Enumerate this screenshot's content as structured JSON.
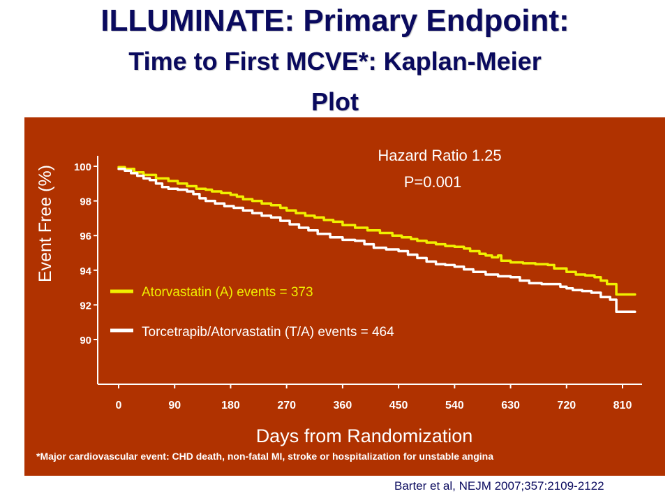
{
  "title": {
    "line1": "ILLUMINATE: Primary Endpoint:",
    "line2": "Time to First MCVE*: Kaplan-Meier",
    "line3": "Plot"
  },
  "footnote": "*Major cardiovascular event: CHD death, non-fatal MI, stroke or hospitalization for unstable angina",
  "citation": "Barter et al, NEJM 2007;357:2109-2122",
  "colors": {
    "panel_bg": "#b03200",
    "title": "#0a0a5e",
    "series_a": "#f0f000",
    "series_ta": "#ffffff"
  },
  "chart_data": {
    "type": "line",
    "subtype": "step (Kaplan-Meier)",
    "title": "",
    "xlabel": "Days from Randomization",
    "ylabel": "Event Free (%)",
    "x_ticks": [
      "0",
      "90",
      "180",
      "270",
      "360",
      "450",
      "540",
      "630",
      "720",
      "810"
    ],
    "y_ticks": [
      "100",
      "98",
      "96",
      "94",
      "92",
      "90"
    ],
    "xlim": [
      -30,
      845
    ],
    "ylim": [
      87.9,
      100.6
    ],
    "grid": false,
    "legend_position": "left-middle",
    "annotations": {
      "hazard_ratio": "Hazard Ratio 1.25",
      "p_value": "P=0.001"
    },
    "series": [
      {
        "name": "Atorvastatin (A) events = 373",
        "color": "#f0f000",
        "points": [
          [
            0,
            99.95
          ],
          [
            10,
            99.85
          ],
          [
            25,
            99.65
          ],
          [
            40,
            99.5
          ],
          [
            60,
            99.3
          ],
          [
            80,
            99.15
          ],
          [
            95,
            99.0
          ],
          [
            110,
            98.85
          ],
          [
            125,
            98.7
          ],
          [
            140,
            98.65
          ],
          [
            150,
            98.55
          ],
          [
            165,
            98.45
          ],
          [
            180,
            98.35
          ],
          [
            190,
            98.25
          ],
          [
            200,
            98.1
          ],
          [
            215,
            98.0
          ],
          [
            230,
            97.85
          ],
          [
            245,
            97.75
          ],
          [
            260,
            97.6
          ],
          [
            270,
            97.45
          ],
          [
            285,
            97.3
          ],
          [
            300,
            97.15
          ],
          [
            315,
            97.05
          ],
          [
            330,
            96.9
          ],
          [
            345,
            96.8
          ],
          [
            360,
            96.6
          ],
          [
            380,
            96.45
          ],
          [
            400,
            96.3
          ],
          [
            420,
            96.15
          ],
          [
            440,
            96.0
          ],
          [
            455,
            95.9
          ],
          [
            470,
            95.8
          ],
          [
            480,
            95.7
          ],
          [
            495,
            95.6
          ],
          [
            510,
            95.5
          ],
          [
            525,
            95.4
          ],
          [
            540,
            95.35
          ],
          [
            555,
            95.25
          ],
          [
            565,
            95.1
          ],
          [
            580,
            94.95
          ],
          [
            590,
            94.85
          ],
          [
            600,
            94.75
          ],
          [
            610,
            94.85
          ],
          [
            615,
            94.55
          ],
          [
            630,
            94.45
          ],
          [
            650,
            94.4
          ],
          [
            670,
            94.35
          ],
          [
            690,
            94.3
          ],
          [
            700,
            94.1
          ],
          [
            720,
            93.9
          ],
          [
            735,
            93.75
          ],
          [
            750,
            93.7
          ],
          [
            765,
            93.6
          ],
          [
            775,
            93.4
          ],
          [
            785,
            93.2
          ],
          [
            800,
            92.6
          ],
          [
            830,
            92.6
          ]
        ]
      },
      {
        "name": "Torcetrapib/Atorvastatin (T/A) events = 464",
        "color": "#ffffff",
        "points": [
          [
            0,
            99.85
          ],
          [
            10,
            99.75
          ],
          [
            20,
            99.6
          ],
          [
            30,
            99.45
          ],
          [
            40,
            99.3
          ],
          [
            50,
            99.2
          ],
          [
            60,
            99.0
          ],
          [
            70,
            98.8
          ],
          [
            80,
            98.7
          ],
          [
            95,
            98.65
          ],
          [
            110,
            98.55
          ],
          [
            120,
            98.4
          ],
          [
            130,
            98.15
          ],
          [
            140,
            98.0
          ],
          [
            155,
            97.85
          ],
          [
            170,
            97.7
          ],
          [
            185,
            97.6
          ],
          [
            200,
            97.45
          ],
          [
            215,
            97.3
          ],
          [
            230,
            97.15
          ],
          [
            245,
            97.05
          ],
          [
            260,
            96.85
          ],
          [
            275,
            96.65
          ],
          [
            290,
            96.45
          ],
          [
            305,
            96.3
          ],
          [
            320,
            96.1
          ],
          [
            340,
            95.9
          ],
          [
            360,
            95.75
          ],
          [
            380,
            95.7
          ],
          [
            395,
            95.5
          ],
          [
            410,
            95.3
          ],
          [
            430,
            95.2
          ],
          [
            450,
            95.1
          ],
          [
            465,
            94.9
          ],
          [
            480,
            94.7
          ],
          [
            495,
            94.5
          ],
          [
            510,
            94.35
          ],
          [
            525,
            94.3
          ],
          [
            540,
            94.2
          ],
          [
            555,
            94.05
          ],
          [
            570,
            93.9
          ],
          [
            590,
            93.75
          ],
          [
            610,
            93.65
          ],
          [
            630,
            93.6
          ],
          [
            645,
            93.4
          ],
          [
            660,
            93.25
          ],
          [
            680,
            93.2
          ],
          [
            700,
            93.2
          ],
          [
            710,
            93.05
          ],
          [
            720,
            92.95
          ],
          [
            730,
            92.85
          ],
          [
            745,
            92.8
          ],
          [
            760,
            92.7
          ],
          [
            775,
            92.45
          ],
          [
            790,
            92.3
          ],
          [
            800,
            91.6
          ],
          [
            830,
            91.6
          ]
        ]
      }
    ]
  }
}
